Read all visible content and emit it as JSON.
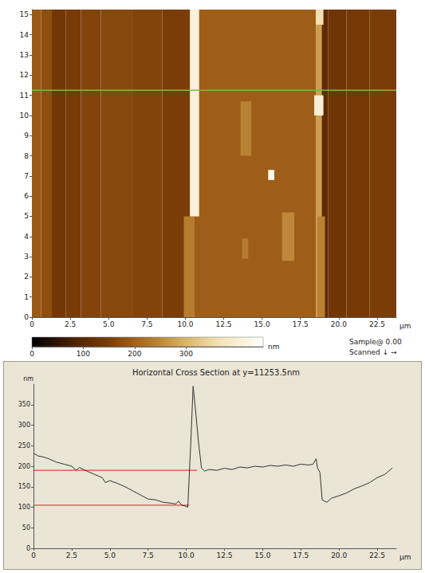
{
  "chart_data": [
    {
      "type": "heatmap",
      "x_label": "µm",
      "xlim": [
        0,
        23.75
      ],
      "xticks": [
        0,
        2.5,
        {
          "value": 5,
          "label": "5.0"
        },
        7.5,
        {
          "value": 10,
          "label": "10.0"
        },
        12.5,
        {
          "value": 15,
          "label": "15.0"
        },
        17.5,
        {
          "value": 20,
          "label": "20.0"
        },
        22.5
      ],
      "ylim": [
        0,
        15.25
      ],
      "yticks": [
        0,
        1,
        2,
        3,
        4,
        5,
        6,
        7,
        8,
        9,
        10,
        11,
        12,
        13,
        14,
        15
      ],
      "cells": [
        [
          0,
          0.6,
          0,
          15.25,
          190
        ],
        [
          0.6,
          1.3,
          0,
          15.25,
          175
        ],
        [
          1.3,
          2.2,
          0,
          15.25,
          135
        ],
        [
          2.2,
          3.2,
          0,
          15.25,
          145
        ],
        [
          3.2,
          4.5,
          0,
          15.25,
          160
        ],
        [
          4.5,
          6.5,
          0,
          15.25,
          165
        ],
        [
          6.5,
          8.5,
          0,
          15.25,
          160
        ],
        [
          8.5,
          10.3,
          0,
          15.25,
          150
        ],
        [
          10.3,
          18.6,
          0,
          15.25,
          195
        ],
        [
          18.6,
          19.3,
          0,
          15.25,
          105
        ],
        [
          19.3,
          20.5,
          0,
          15.25,
          130
        ],
        [
          20.5,
          22,
          0,
          15.25,
          140
        ],
        [
          22,
          23.75,
          0,
          15.25,
          150
        ],
        [
          9.9,
          10.6,
          0,
          5,
          235
        ],
        [
          10.3,
          10.9,
          5,
          15.25,
          410
        ],
        [
          18.5,
          18.9,
          0,
          15.25,
          275
        ],
        [
          18.6,
          19.1,
          0,
          5,
          240
        ],
        [
          18.4,
          19,
          10,
          11,
          400
        ],
        [
          18.5,
          19,
          14.5,
          15.25,
          360
        ],
        [
          13.6,
          14.3,
          8,
          10.7,
          240
        ],
        [
          15.4,
          15.8,
          6.8,
          7.3,
          430
        ],
        [
          16.3,
          17.1,
          2.8,
          5.2,
          250
        ],
        [
          13.7,
          14.1,
          2.9,
          3.9,
          235
        ]
      ],
      "colorbar": {
        "label": "nm",
        "range": [
          0,
          450
        ],
        "ticks": [
          0,
          100,
          200,
          300
        ]
      },
      "cursor": {
        "y": 11.2535,
        "color": "#8db33a"
      },
      "annotations": [
        "Sample@ 0.00",
        "Scanned ↓ →"
      ]
    },
    {
      "type": "line",
      "title": "Horizontal Cross Section at y=11253.5nm",
      "x_label": "µm",
      "y_label": "nm",
      "xlim": [
        0,
        23.75
      ],
      "xticks": [
        0,
        2.5,
        {
          "value": 5,
          "label": "5.0"
        },
        7.5,
        {
          "value": 10,
          "label": "10.0"
        },
        12.5,
        {
          "value": 15,
          "label": "15.0"
        },
        17.5,
        {
          "value": 20,
          "label": "20.0"
        },
        22.5
      ],
      "ylim": [
        0,
        400
      ],
      "yticks": [
        0,
        50,
        100,
        150,
        200,
        250,
        300,
        350
      ],
      "x": [
        0,
        0.3,
        0.7,
        1,
        1.5,
        2,
        2.5,
        2.8,
        3,
        3.5,
        4,
        4.5,
        4.7,
        5,
        5.5,
        6,
        6.5,
        7,
        7.5,
        8,
        8.5,
        9,
        9.3,
        9.5,
        9.7,
        10,
        10.1,
        10.3,
        10.45,
        10.6,
        10.8,
        11,
        11.2,
        11.5,
        12,
        12.5,
        13,
        13.5,
        14,
        14.5,
        15,
        15.5,
        16,
        16.5,
        17,
        17.5,
        18,
        18.3,
        18.5,
        18.6,
        18.75,
        18.9,
        19.2,
        19.5,
        20,
        20.5,
        21,
        21.5,
        22,
        22.5,
        23,
        23.5
      ],
      "values": [
        232,
        225,
        222,
        218,
        210,
        205,
        200,
        190,
        197,
        188,
        180,
        172,
        160,
        165,
        158,
        150,
        140,
        130,
        120,
        118,
        112,
        110,
        108,
        115,
        105,
        102,
        100,
        260,
        395,
        340,
        260,
        195,
        188,
        192,
        190,
        195,
        192,
        198,
        196,
        200,
        198,
        202,
        200,
        203,
        200,
        205,
        203,
        205,
        218,
        195,
        185,
        118,
        112,
        122,
        128,
        135,
        145,
        152,
        160,
        172,
        180,
        196
      ],
      "color": "#333333",
      "reference_lines": [
        {
          "y": 190,
          "x": [
            0,
            10.7
          ],
          "color": "#e02020"
        },
        {
          "y": 105,
          "x": [
            0,
            10.2
          ],
          "color": "#e02020"
        }
      ]
    }
  ]
}
